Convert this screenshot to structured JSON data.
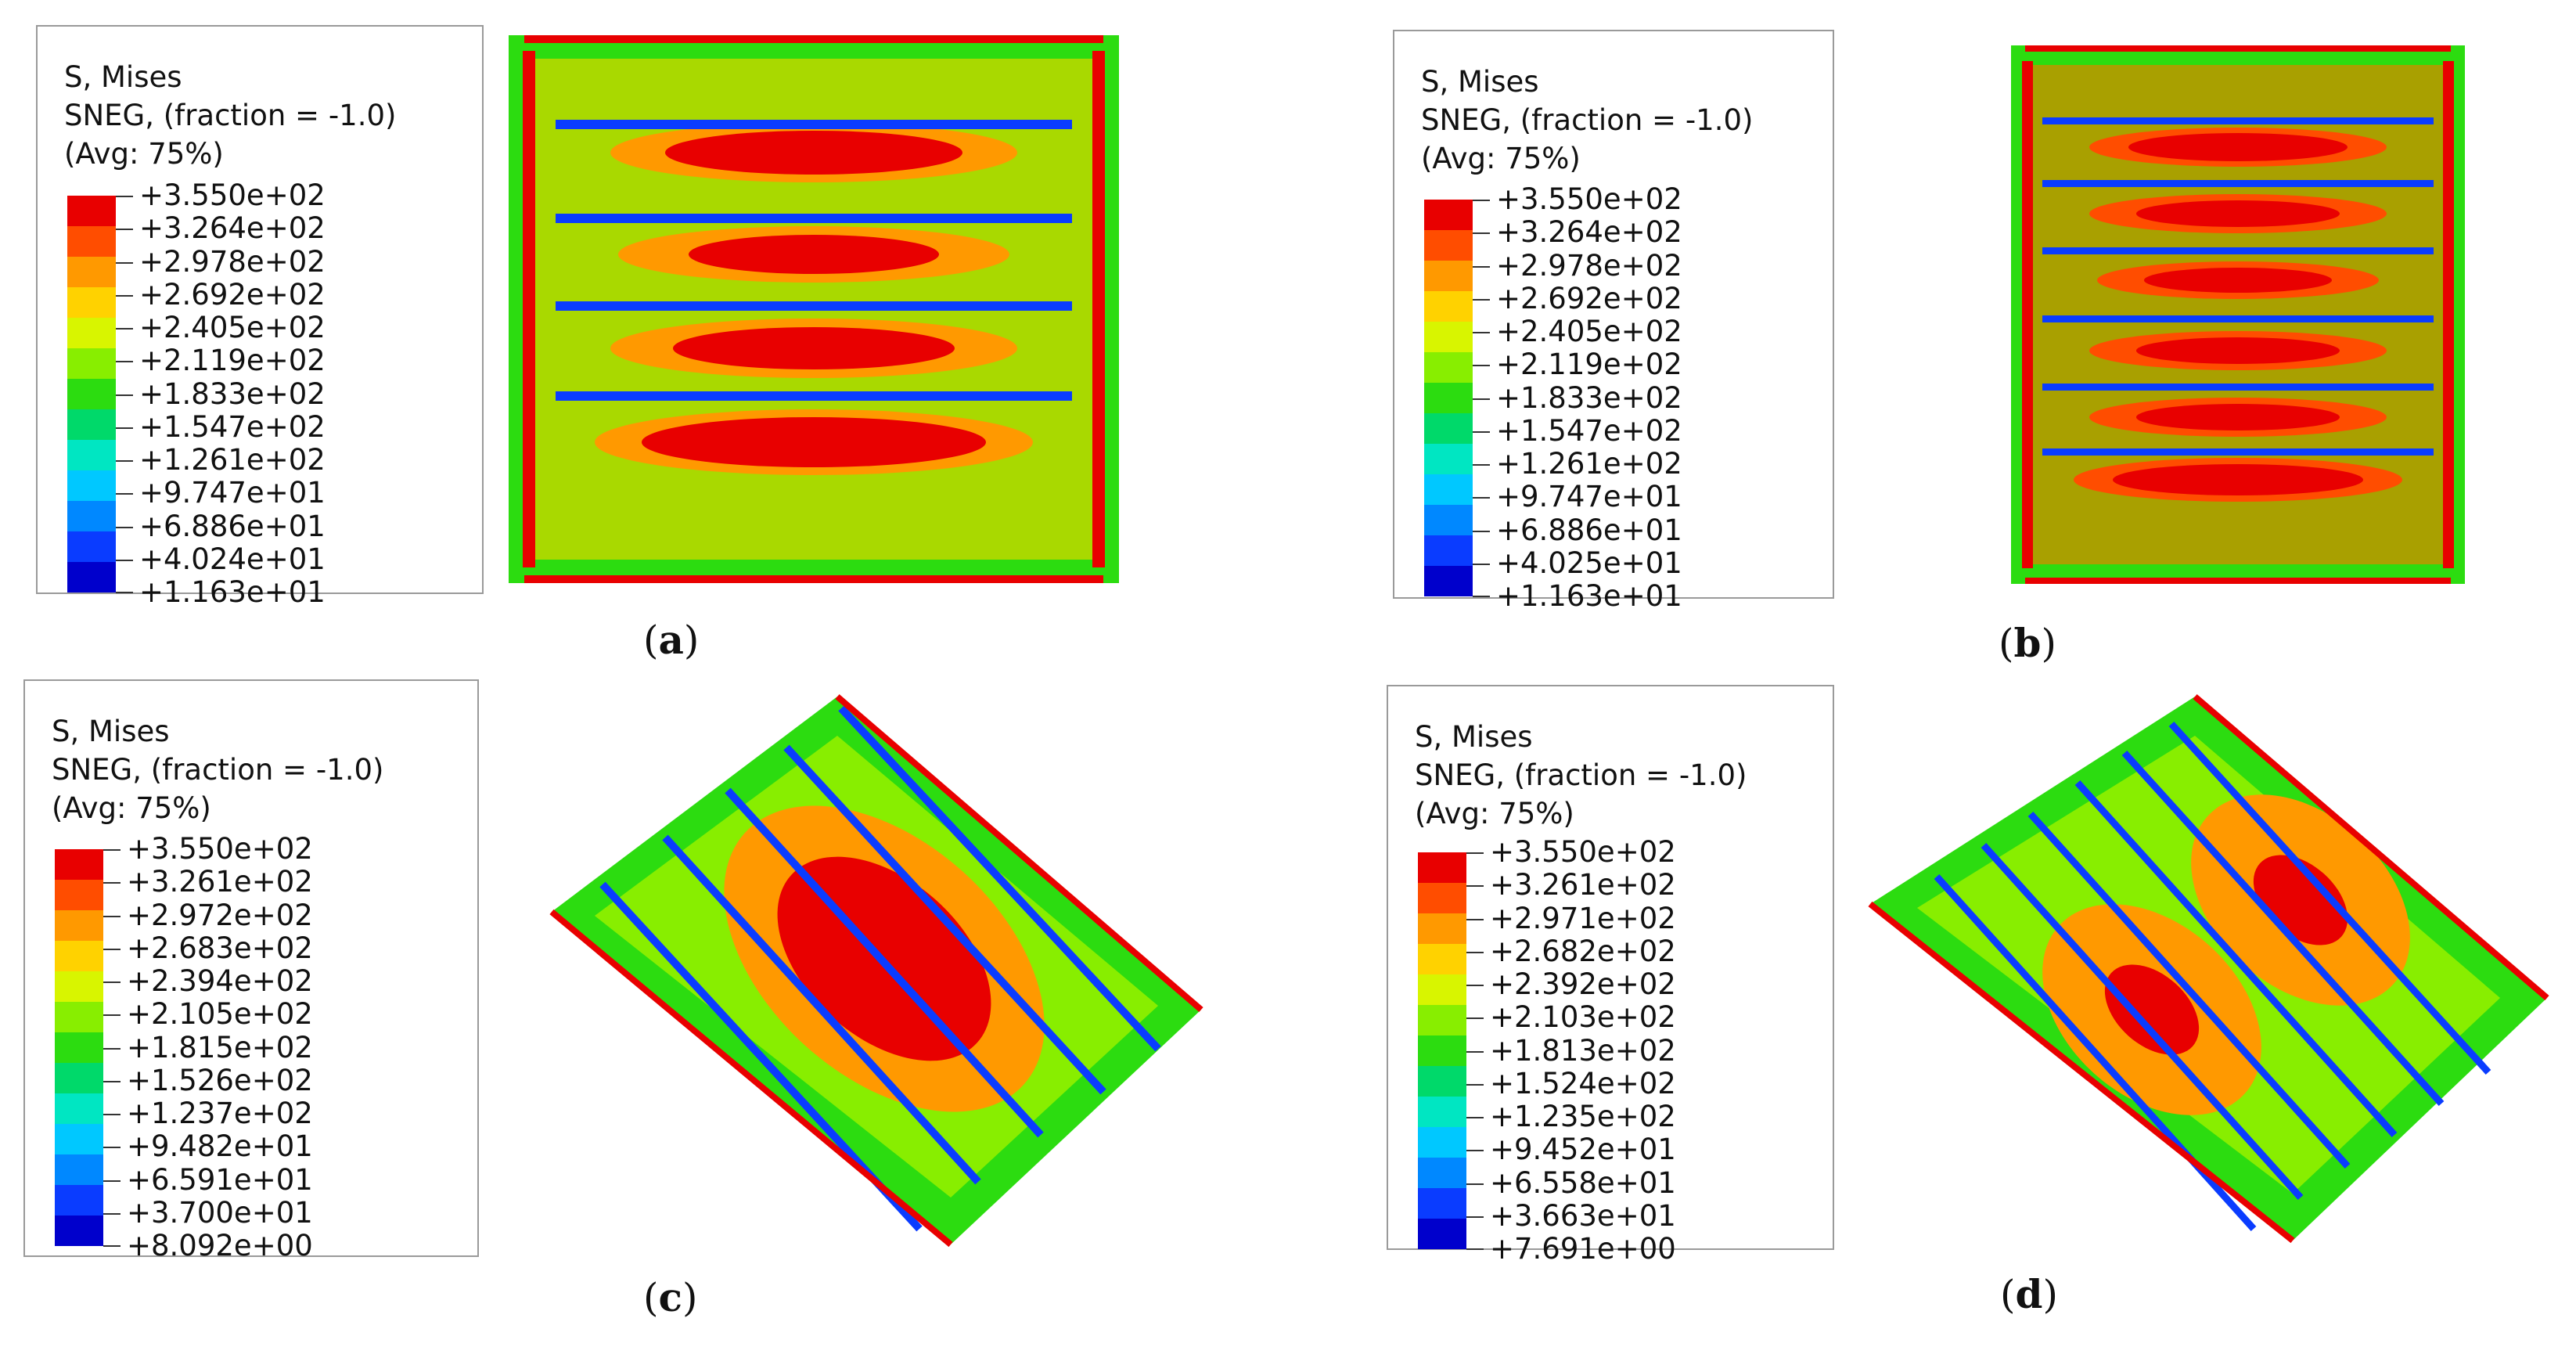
{
  "colors": [
    "#e80000",
    "#ff4d00",
    "#ff9900",
    "#ffd200",
    "#d8f500",
    "#88ee00",
    "#2cdc10",
    "#00d96a",
    "#00e6c2",
    "#00c8ff",
    "#0088ff",
    "#0a3cff",
    "#0000cc"
  ],
  "panels": [
    {
      "id": "a",
      "legend": {
        "line1": "S, Mises",
        "line2": "SNEG, (fraction = -1.0)",
        "line3": "(Avg: 75%)",
        "values": [
          "+3.550e+02",
          "+3.264e+02",
          "+2.978e+02",
          "+2.692e+02",
          "+2.405e+02",
          "+2.119e+02",
          "+1.833e+02",
          "+1.547e+02",
          "+1.261e+02",
          "+9.747e+01",
          "+6.886e+01",
          "+4.024e+01",
          "+1.163e+01"
        ]
      },
      "caption": "a",
      "view": "flat plate with horizontal stiffeners"
    },
    {
      "id": "b",
      "legend": {
        "line1": "S, Mises",
        "line2": "SNEG, (fraction = -1.0)",
        "line3": "(Avg: 75%)",
        "values": [
          "+3.550e+02",
          "+3.264e+02",
          "+2.978e+02",
          "+2.692e+02",
          "+2.405e+02",
          "+2.119e+02",
          "+1.833e+02",
          "+1.547e+02",
          "+1.261e+02",
          "+9.747e+01",
          "+6.886e+01",
          "+4.025e+01",
          "+1.163e+01"
        ]
      },
      "caption": "b",
      "view": "flat plate with more horizontal stiffeners"
    },
    {
      "id": "c",
      "legend": {
        "line1": "S, Mises",
        "line2": "SNEG, (fraction = -1.0)",
        "line3": "(Avg: 75%)",
        "values": [
          "+3.550e+02",
          "+3.261e+02",
          "+2.972e+02",
          "+2.683e+02",
          "+2.394e+02",
          "+2.105e+02",
          "+1.815e+02",
          "+1.526e+02",
          "+1.237e+02",
          "+9.482e+01",
          "+6.591e+01",
          "+3.700e+01",
          "+8.092e+00"
        ]
      },
      "caption": "c",
      "view": "curved stiffened panel, isometric"
    },
    {
      "id": "d",
      "legend": {
        "line1": "S, Mises",
        "line2": "SNEG, (fraction = -1.0)",
        "line3": "(Avg: 75%)",
        "values": [
          "+3.550e+02",
          "+3.261e+02",
          "+2.971e+02",
          "+2.682e+02",
          "+2.392e+02",
          "+2.103e+02",
          "+1.813e+02",
          "+1.524e+02",
          "+1.235e+02",
          "+9.452e+01",
          "+6.558e+01",
          "+3.663e+01",
          "+7.691e+00"
        ]
      },
      "caption": "d",
      "view": "curved stiffened panel with more stiffeners, isometric"
    }
  ]
}
